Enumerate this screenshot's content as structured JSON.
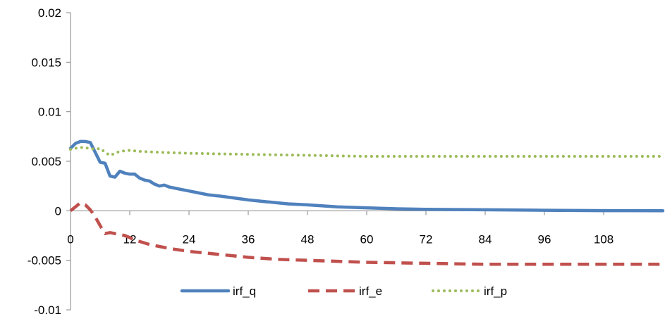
{
  "chart_data": {
    "type": "line",
    "title": "",
    "xlabel": "",
    "ylabel": "",
    "xlim": [
      0,
      120
    ],
    "ylim": [
      -0.01,
      0.02
    ],
    "x_ticks": [
      "0",
      "12",
      "24",
      "36",
      "48",
      "60",
      "72",
      "84",
      "96",
      "108"
    ],
    "y_ticks": [
      "0.02",
      "0.015",
      "0.01",
      "0.005",
      "0",
      "-0.005",
      "-0.01"
    ],
    "y_tick_values": [
      0.02,
      0.015,
      0.01,
      0.005,
      0,
      -0.005,
      -0.01
    ],
    "grid": false,
    "legend_position": "bottom",
    "series": [
      {
        "name": "irf_q",
        "color": "#4F81BD",
        "dash": "solid",
        "points": [
          [
            0,
            0.0063
          ],
          [
            1,
            0.0068
          ],
          [
            2,
            0.007
          ],
          [
            3,
            0.007
          ],
          [
            4,
            0.0069
          ],
          [
            5,
            0.0059
          ],
          [
            6,
            0.0049
          ],
          [
            7,
            0.0048
          ],
          [
            8,
            0.0035
          ],
          [
            9,
            0.0034
          ],
          [
            10,
            0.004
          ],
          [
            11,
            0.0038
          ],
          [
            12,
            0.0037
          ],
          [
            13,
            0.0037
          ],
          [
            14,
            0.0033
          ],
          [
            15,
            0.0031
          ],
          [
            16,
            0.003
          ],
          [
            17,
            0.0027
          ],
          [
            18,
            0.0025
          ],
          [
            19,
            0.0026
          ],
          [
            20,
            0.0024
          ],
          [
            21,
            0.0023
          ],
          [
            22,
            0.0022
          ],
          [
            24,
            0.002
          ],
          [
            26,
            0.0018
          ],
          [
            28,
            0.0016
          ],
          [
            30,
            0.0015
          ],
          [
            33,
            0.0013
          ],
          [
            36,
            0.0011
          ],
          [
            40,
            0.0009
          ],
          [
            44,
            0.0007
          ],
          [
            48,
            0.0006
          ],
          [
            54,
            0.0004
          ],
          [
            60,
            0.0003
          ],
          [
            66,
            0.0002
          ],
          [
            72,
            0.00015
          ],
          [
            84,
            0.0001
          ],
          [
            96,
            5e-05
          ],
          [
            108,
            2e-05
          ],
          [
            120,
            0.0
          ]
        ]
      },
      {
        "name": "irf_e",
        "color": "#C0504D",
        "dash": "dashed",
        "points": [
          [
            0,
            0.0
          ],
          [
            1,
            0.0004
          ],
          [
            2,
            0.0008
          ],
          [
            3,
            0.0006
          ],
          [
            4,
            0.0001
          ],
          [
            5,
            -0.0006
          ],
          [
            6,
            -0.0015
          ],
          [
            7,
            -0.0023
          ],
          [
            8,
            -0.0022
          ],
          [
            9,
            -0.0023
          ],
          [
            10,
            -0.0024
          ],
          [
            11,
            -0.0025
          ],
          [
            12,
            -0.0027
          ],
          [
            13,
            -0.003
          ],
          [
            14,
            -0.0031
          ],
          [
            16,
            -0.0034
          ],
          [
            18,
            -0.0036
          ],
          [
            20,
            -0.0038
          ],
          [
            24,
            -0.0041
          ],
          [
            30,
            -0.0044
          ],
          [
            36,
            -0.0047
          ],
          [
            42,
            -0.0049
          ],
          [
            48,
            -0.005
          ],
          [
            60,
            -0.0052
          ],
          [
            72,
            -0.0053
          ],
          [
            84,
            -0.0054
          ],
          [
            96,
            -0.0054
          ],
          [
            108,
            -0.0054
          ],
          [
            120,
            -0.0054
          ]
        ]
      },
      {
        "name": "irf_p",
        "color": "#9BBB59",
        "dash": "dotted",
        "points": [
          [
            0,
            0.0062
          ],
          [
            2,
            0.0064
          ],
          [
            4,
            0.0063
          ],
          [
            5,
            0.0062
          ],
          [
            6,
            0.0063
          ],
          [
            7,
            0.0059
          ],
          [
            8,
            0.0056
          ],
          [
            9,
            0.0058
          ],
          [
            10,
            0.006
          ],
          [
            12,
            0.0061
          ],
          [
            14,
            0.006
          ],
          [
            18,
            0.0059
          ],
          [
            24,
            0.0058
          ],
          [
            36,
            0.0057
          ],
          [
            48,
            0.0056
          ],
          [
            60,
            0.0055
          ],
          [
            72,
            0.0055
          ],
          [
            84,
            0.0055
          ],
          [
            96,
            0.0055
          ],
          [
            108,
            0.0055
          ],
          [
            120,
            0.0055
          ]
        ]
      }
    ]
  }
}
